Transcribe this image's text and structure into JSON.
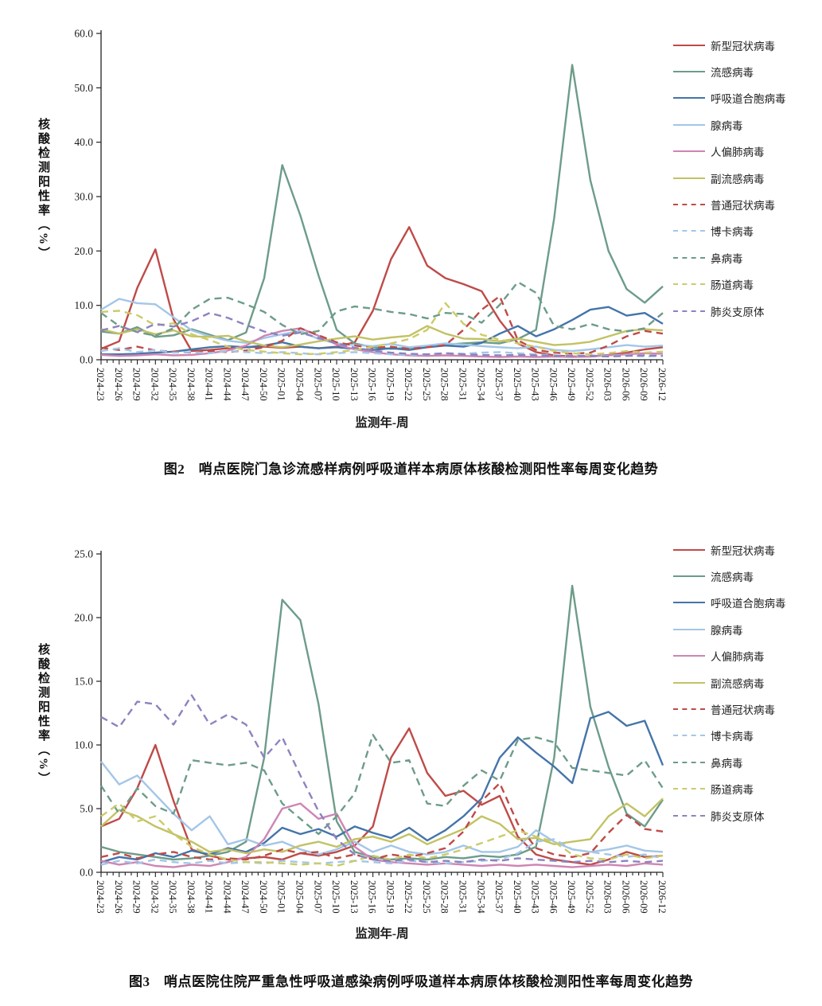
{
  "figure": {
    "background": "#ffffff",
    "axis_color": "#222222",
    "text_color": "#1a1a1a"
  },
  "chart_data": [
    {
      "id": "figure-2-ili-outpatient",
      "type": "line",
      "caption": "图2　哨点医院门急诊流感样病例呼吸道样本病原体核酸检测阳性率每周变化趋势",
      "x_axis_title": "监测年-周",
      "y_axis_title": "核酸检测阳性率（%）",
      "ylim": [
        0,
        60
      ],
      "ytick_step": 10,
      "ytick_labels": [
        "0.0",
        "10.0",
        "20.0",
        "30.0",
        "40.0",
        "50.0",
        "60.0"
      ],
      "grid": false,
      "legend_position": "right",
      "minor_ticks_per_interval": 3,
      "categories": [
        "2024-23",
        "2024-26",
        "2024-29",
        "2024-32",
        "2024-35",
        "2024-38",
        "2024-41",
        "2024-44",
        "2024-47",
        "2024-50",
        "2025-01",
        "2025-04",
        "2025-07",
        "2025-10",
        "2025-13",
        "2025-16",
        "2025-19",
        "2025-22",
        "2025-25",
        "2025-28",
        "2025-31",
        "2025-34",
        "2025-37",
        "2025-40",
        "2025-43",
        "2025-46",
        "2025-49",
        "2025-52",
        "2026-03",
        "2026-06",
        "2026-09",
        "2026-12"
      ],
      "series": [
        {
          "name": "新型冠状病毒",
          "color": "#BE4B48",
          "style": "solid",
          "values": [
            2.0,
            3.4,
            13.2,
            20.3,
            7.4,
            1.6,
            1.8,
            2.1,
            2.3,
            2.4,
            2.2,
            2.4,
            2.1,
            2.4,
            3.2,
            9.0,
            18.5,
            24.4,
            17.3,
            15.0,
            13.9,
            12.6,
            7.2,
            3.0,
            1.4,
            0.8,
            0.6,
            0.6,
            0.9,
            1.3,
            1.9,
            2.3
          ]
        },
        {
          "name": "流感病毒",
          "color": "#6D9C89",
          "style": "solid",
          "values": [
            5.2,
            4.8,
            6.0,
            4.2,
            4.5,
            5.6,
            4.6,
            3.6,
            5.0,
            15.0,
            35.8,
            26.5,
            15.5,
            5.5,
            3.0,
            2.3,
            2.0,
            2.2,
            2.5,
            2.8,
            3.0,
            3.2,
            3.0,
            3.8,
            5.5,
            26.0,
            54.2,
            33.0,
            20.0,
            13.0,
            10.5,
            13.5
          ]
        },
        {
          "name": "呼吸道合胞病毒",
          "color": "#4474A9",
          "style": "solid",
          "values": [
            1.0,
            1.0,
            1.1,
            1.3,
            1.5,
            1.9,
            2.3,
            2.5,
            2.3,
            2.6,
            3.2,
            2.4,
            2.1,
            2.3,
            2.0,
            1.8,
            2.1,
            1.8,
            2.3,
            2.6,
            2.4,
            3.1,
            4.8,
            6.2,
            4.3,
            5.6,
            7.3,
            9.2,
            9.7,
            8.1,
            8.6,
            6.6
          ]
        },
        {
          "name": "腺病毒",
          "color": "#A3C6E8",
          "style": "solid",
          "values": [
            9.2,
            11.2,
            10.4,
            10.2,
            7.8,
            5.4,
            4.3,
            3.5,
            3.1,
            4.0,
            4.7,
            5.3,
            3.8,
            3.0,
            2.7,
            2.5,
            2.9,
            2.3,
            2.6,
            3.0,
            2.8,
            2.5,
            2.3,
            2.1,
            2.4,
            1.8,
            1.6,
            1.9,
            2.3,
            2.7,
            2.4,
            2.6
          ]
        },
        {
          "name": "人偏肺病毒",
          "color": "#CE85B4",
          "style": "solid",
          "values": [
            0.9,
            0.7,
            0.8,
            1.0,
            0.8,
            0.9,
            1.2,
            1.7,
            2.6,
            4.4,
            5.3,
            5.8,
            4.4,
            2.8,
            1.9,
            1.4,
            1.0,
            0.8,
            0.7,
            0.8,
            0.7,
            0.6,
            0.5,
            0.6,
            0.5,
            0.6,
            0.5,
            0.6,
            0.8,
            1.0,
            1.2,
            1.1
          ]
        },
        {
          "name": "副流感病毒",
          "color": "#C2C264",
          "style": "solid",
          "values": [
            5.6,
            4.8,
            5.6,
            4.7,
            5.4,
            4.3,
            4.2,
            4.4,
            3.4,
            2.6,
            2.3,
            2.8,
            3.4,
            3.9,
            4.3,
            3.7,
            4.1,
            4.4,
            6.2,
            4.8,
            3.9,
            3.8,
            3.4,
            3.9,
            3.3,
            2.7,
            2.9,
            3.3,
            4.3,
            5.3,
            5.6,
            5.4
          ]
        },
        {
          "name": "普通冠状病毒",
          "color": "#BE4B48",
          "style": "dashed",
          "values": [
            2.2,
            1.8,
            2.4,
            1.7,
            1.5,
            1.3,
            1.6,
            1.4,
            1.7,
            2.3,
            3.5,
            5.8,
            4.5,
            3.2,
            2.6,
            2.2,
            2.4,
            2.0,
            2.3,
            2.7,
            5.5,
            9.2,
            11.7,
            3.6,
            1.8,
            1.3,
            1.1,
            1.3,
            2.6,
            4.3,
            5.3,
            4.8
          ]
        },
        {
          "name": "博卡病毒",
          "color": "#A3C6E8",
          "style": "dashed",
          "values": [
            1.6,
            2.1,
            1.4,
            1.8,
            1.3,
            1.4,
            1.2,
            1.6,
            1.4,
            1.2,
            1.4,
            1.2,
            1.0,
            1.2,
            1.4,
            1.2,
            1.0,
            0.9,
            1.0,
            1.2,
            1.1,
            1.3,
            1.4,
            1.2,
            1.0,
            0.8,
            0.7,
            0.8,
            0.7,
            0.8,
            0.6,
            0.7
          ]
        },
        {
          "name": "鼻病毒",
          "color": "#6D9C89",
          "style": "dashed",
          "values": [
            8.6,
            6.2,
            5.1,
            4.4,
            5.8,
            9.2,
            11.2,
            11.4,
            10.2,
            8.8,
            6.4,
            4.7,
            5.3,
            8.9,
            9.8,
            9.4,
            8.8,
            8.4,
            7.6,
            8.6,
            8.4,
            6.8,
            10.1,
            14.3,
            12.3,
            6.2,
            5.6,
            6.6,
            5.6,
            5.2,
            5.8,
            8.6
          ]
        },
        {
          "name": "肠道病毒",
          "color": "#CCCB6A",
          "style": "dashed",
          "values": [
            8.8,
            9.0,
            8.2,
            6.3,
            6.7,
            4.7,
            3.6,
            2.4,
            1.8,
            1.5,
            1.2,
            1.0,
            1.1,
            1.4,
            1.8,
            2.4,
            3.0,
            3.8,
            5.5,
            10.4,
            6.6,
            4.6,
            3.7,
            3.0,
            2.4,
            1.6,
            1.2,
            1.0,
            1.2,
            1.6,
            1.3,
            1.5
          ]
        },
        {
          "name": "肺炎支原体",
          "color": "#8D83BF",
          "style": "dashed",
          "values": [
            5.4,
            6.2,
            5.1,
            6.6,
            6.1,
            7.1,
            8.6,
            7.7,
            6.4,
            5.2,
            4.4,
            5.0,
            4.0,
            3.0,
            2.2,
            1.7,
            1.3,
            1.1,
            1.0,
            1.2,
            1.0,
            0.9,
            0.8,
            0.9,
            0.8,
            0.7,
            0.7,
            0.7,
            0.6,
            0.7,
            0.8,
            0.7
          ]
        }
      ]
    },
    {
      "id": "figure-3-sari-inpatient",
      "type": "line",
      "caption": "图3　哨点医院住院严重急性呼吸道感染病例呼吸道样本病原体核酸检测阳性率每周变化趋势",
      "x_axis_title": "监测年-周",
      "y_axis_title": "核酸检测阳性率（%）",
      "ylim": [
        0,
        25
      ],
      "ytick_step": 5,
      "ytick_labels": [
        "0.0",
        "5.0",
        "10.0",
        "15.0",
        "20.0",
        "25.0"
      ],
      "grid": false,
      "legend_position": "right",
      "minor_ticks_per_interval": 3,
      "categories": [
        "2024-23",
        "2024-26",
        "2024-29",
        "2024-32",
        "2024-35",
        "2024-38",
        "2024-41",
        "2024-44",
        "2024-47",
        "2024-50",
        "2025-01",
        "2025-04",
        "2025-07",
        "2025-10",
        "2025-13",
        "2025-16",
        "2025-19",
        "2025-22",
        "2025-25",
        "2025-28",
        "2025-31",
        "2025-34",
        "2025-37",
        "2025-40",
        "2025-43",
        "2025-46",
        "2025-49",
        "2025-52",
        "2026-03",
        "2026-06",
        "2026-09",
        "2026-12"
      ],
      "series": [
        {
          "name": "新型冠状病毒",
          "color": "#BE4B48",
          "style": "solid",
          "values": [
            3.6,
            4.2,
            6.6,
            10.0,
            5.6,
            1.8,
            1.3,
            1.0,
            1.1,
            1.2,
            1.0,
            1.5,
            1.3,
            1.6,
            2.1,
            3.6,
            9.0,
            11.3,
            7.8,
            6.0,
            6.4,
            5.3,
            6.0,
            2.8,
            1.4,
            1.0,
            0.8,
            0.6,
            1.0,
            1.6,
            1.2,
            1.3
          ]
        },
        {
          "name": "流感病毒",
          "color": "#6D9C89",
          "style": "solid",
          "values": [
            2.0,
            1.6,
            1.4,
            1.2,
            1.0,
            1.1,
            1.3,
            1.6,
            2.4,
            9.0,
            21.4,
            19.8,
            13.2,
            4.0,
            1.6,
            1.2,
            1.0,
            1.1,
            1.0,
            1.2,
            1.1,
            1.3,
            1.2,
            1.4,
            2.0,
            9.0,
            22.5,
            13.0,
            8.3,
            4.6,
            3.6,
            5.7
          ]
        },
        {
          "name": "呼吸道合胞病毒",
          "color": "#4474A9",
          "style": "solid",
          "values": [
            0.8,
            1.2,
            1.0,
            1.5,
            1.2,
            1.7,
            1.4,
            1.9,
            1.6,
            2.3,
            3.5,
            3.0,
            3.4,
            2.8,
            3.6,
            3.1,
            2.7,
            3.5,
            2.5,
            3.3,
            4.4,
            5.8,
            9.0,
            10.6,
            9.4,
            8.3,
            7.0,
            12.1,
            12.6,
            11.5,
            11.9,
            8.4
          ]
        },
        {
          "name": "腺病毒",
          "color": "#A3C6E8",
          "style": "solid",
          "values": [
            8.7,
            6.9,
            7.6,
            6.1,
            4.6,
            3.3,
            4.4,
            2.2,
            2.6,
            2.1,
            2.4,
            1.8,
            1.4,
            1.8,
            2.4,
            1.6,
            2.1,
            1.6,
            1.4,
            1.6,
            2.1,
            1.6,
            1.6,
            2.0,
            3.3,
            2.4,
            1.8,
            1.6,
            1.8,
            2.1,
            1.7,
            1.6
          ]
        },
        {
          "name": "人偏肺病毒",
          "color": "#CE85B4",
          "style": "solid",
          "values": [
            0.9,
            0.6,
            0.8,
            0.5,
            0.4,
            0.6,
            0.5,
            0.8,
            1.2,
            2.6,
            5.0,
            5.4,
            4.2,
            4.6,
            2.0,
            1.0,
            0.8,
            0.7,
            0.6,
            0.7,
            0.6,
            0.5,
            0.6,
            0.5,
            0.6,
            0.5,
            0.4,
            0.5,
            0.6,
            0.5,
            0.7,
            0.6
          ]
        },
        {
          "name": "副流感病毒",
          "color": "#C2C264",
          "style": "solid",
          "values": [
            3.6,
            4.9,
            4.4,
            3.6,
            3.0,
            2.4,
            1.6,
            1.8,
            1.5,
            1.8,
            1.6,
            2.1,
            2.4,
            2.0,
            2.6,
            2.8,
            2.4,
            3.0,
            2.2,
            2.8,
            3.4,
            4.4,
            3.8,
            2.6,
            2.7,
            2.2,
            2.4,
            2.6,
            4.4,
            5.4,
            4.4,
            5.8
          ]
        },
        {
          "name": "普通冠状病毒",
          "color": "#BE4B48",
          "style": "dashed",
          "values": [
            1.2,
            1.5,
            1.1,
            1.4,
            1.6,
            1.2,
            1.0,
            1.1,
            1.0,
            1.3,
            1.8,
            1.5,
            1.6,
            1.1,
            1.4,
            1.0,
            1.4,
            1.2,
            1.5,
            1.9,
            3.2,
            5.6,
            7.0,
            3.8,
            1.9,
            1.4,
            1.2,
            1.5,
            3.1,
            4.5,
            3.4,
            3.2
          ]
        },
        {
          "name": "博卡病毒",
          "color": "#A3C6E8",
          "style": "dashed",
          "values": [
            0.6,
            0.9,
            0.7,
            1.0,
            0.8,
            0.7,
            0.9,
            0.7,
            0.8,
            0.7,
            0.9,
            0.8,
            0.7,
            0.8,
            0.9,
            0.8,
            0.7,
            0.9,
            0.8,
            0.7,
            0.8,
            0.9,
            1.0,
            1.5,
            2.4,
            2.6,
            1.8,
            1.6,
            1.4,
            1.2,
            1.4,
            1.1
          ]
        },
        {
          "name": "鼻病毒",
          "color": "#6D9C89",
          "style": "dashed",
          "values": [
            6.8,
            4.6,
            6.6,
            5.2,
            4.6,
            8.8,
            8.6,
            8.4,
            8.6,
            8.0,
            5.4,
            4.2,
            3.0,
            4.4,
            6.2,
            10.8,
            8.6,
            8.8,
            5.4,
            5.2,
            6.8,
            8.0,
            7.2,
            10.4,
            10.6,
            10.2,
            8.2,
            8.0,
            7.8,
            7.6,
            8.8,
            6.6
          ]
        },
        {
          "name": "肠道病毒",
          "color": "#CCCB6A",
          "style": "dashed",
          "values": [
            4.4,
            5.4,
            4.0,
            4.4,
            3.0,
            2.0,
            1.4,
            1.0,
            0.8,
            0.8,
            0.7,
            0.6,
            0.7,
            0.5,
            0.9,
            1.3,
            1.0,
            1.4,
            1.1,
            1.4,
            1.8,
            2.3,
            2.8,
            3.3,
            2.8,
            2.4,
            1.4,
            1.1,
            1.0,
            1.4,
            1.1,
            1.3
          ]
        },
        {
          "name": "肺炎支原体",
          "color": "#8D83BF",
          "style": "dashed",
          "values": [
            12.2,
            11.4,
            13.4,
            13.2,
            11.6,
            13.9,
            11.6,
            12.4,
            11.6,
            9.0,
            10.6,
            7.6,
            4.8,
            2.6,
            1.4,
            1.0,
            0.9,
            1.0,
            0.8,
            0.9,
            0.8,
            1.0,
            0.9,
            1.1,
            1.0,
            0.9,
            0.8,
            0.9,
            0.8,
            0.9,
            0.8,
            0.9
          ]
        }
      ]
    }
  ]
}
